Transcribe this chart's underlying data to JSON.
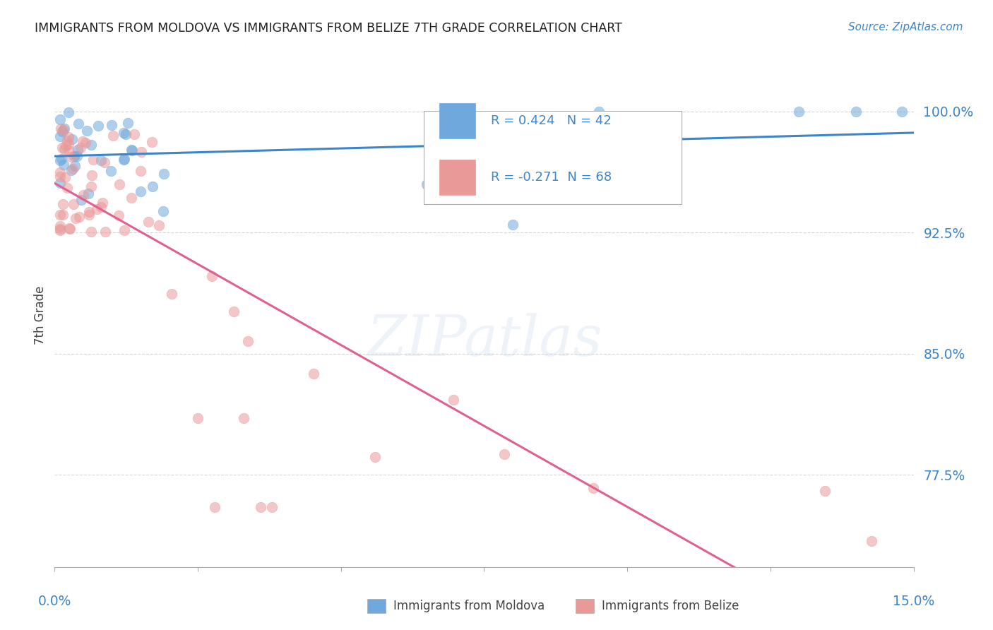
{
  "title": "IMMIGRANTS FROM MOLDOVA VS IMMIGRANTS FROM BELIZE 7TH GRADE CORRELATION CHART",
  "source": "Source: ZipAtlas.com",
  "ylabel": "7th Grade",
  "ytick_labels": [
    "100.0%",
    "92.5%",
    "85.0%",
    "77.5%"
  ],
  "ytick_values": [
    1.0,
    0.925,
    0.85,
    0.775
  ],
  "xmin": 0.0,
  "xmax": 0.15,
  "ymin": 0.718,
  "ymax": 1.03,
  "moldova_R": 0.424,
  "moldova_N": 42,
  "belize_R": -0.271,
  "belize_N": 68,
  "moldova_color": "#6fa8dc",
  "belize_color": "#ea9999",
  "moldova_line_color": "#3d85c8",
  "belize_line_color": "#e06090",
  "legend_label_moldova": "Immigrants from Moldova",
  "legend_label_belize": "Immigrants from Belize",
  "watermark": "ZIPatlas",
  "background_color": "#ffffff",
  "grid_color": "#cccccc"
}
